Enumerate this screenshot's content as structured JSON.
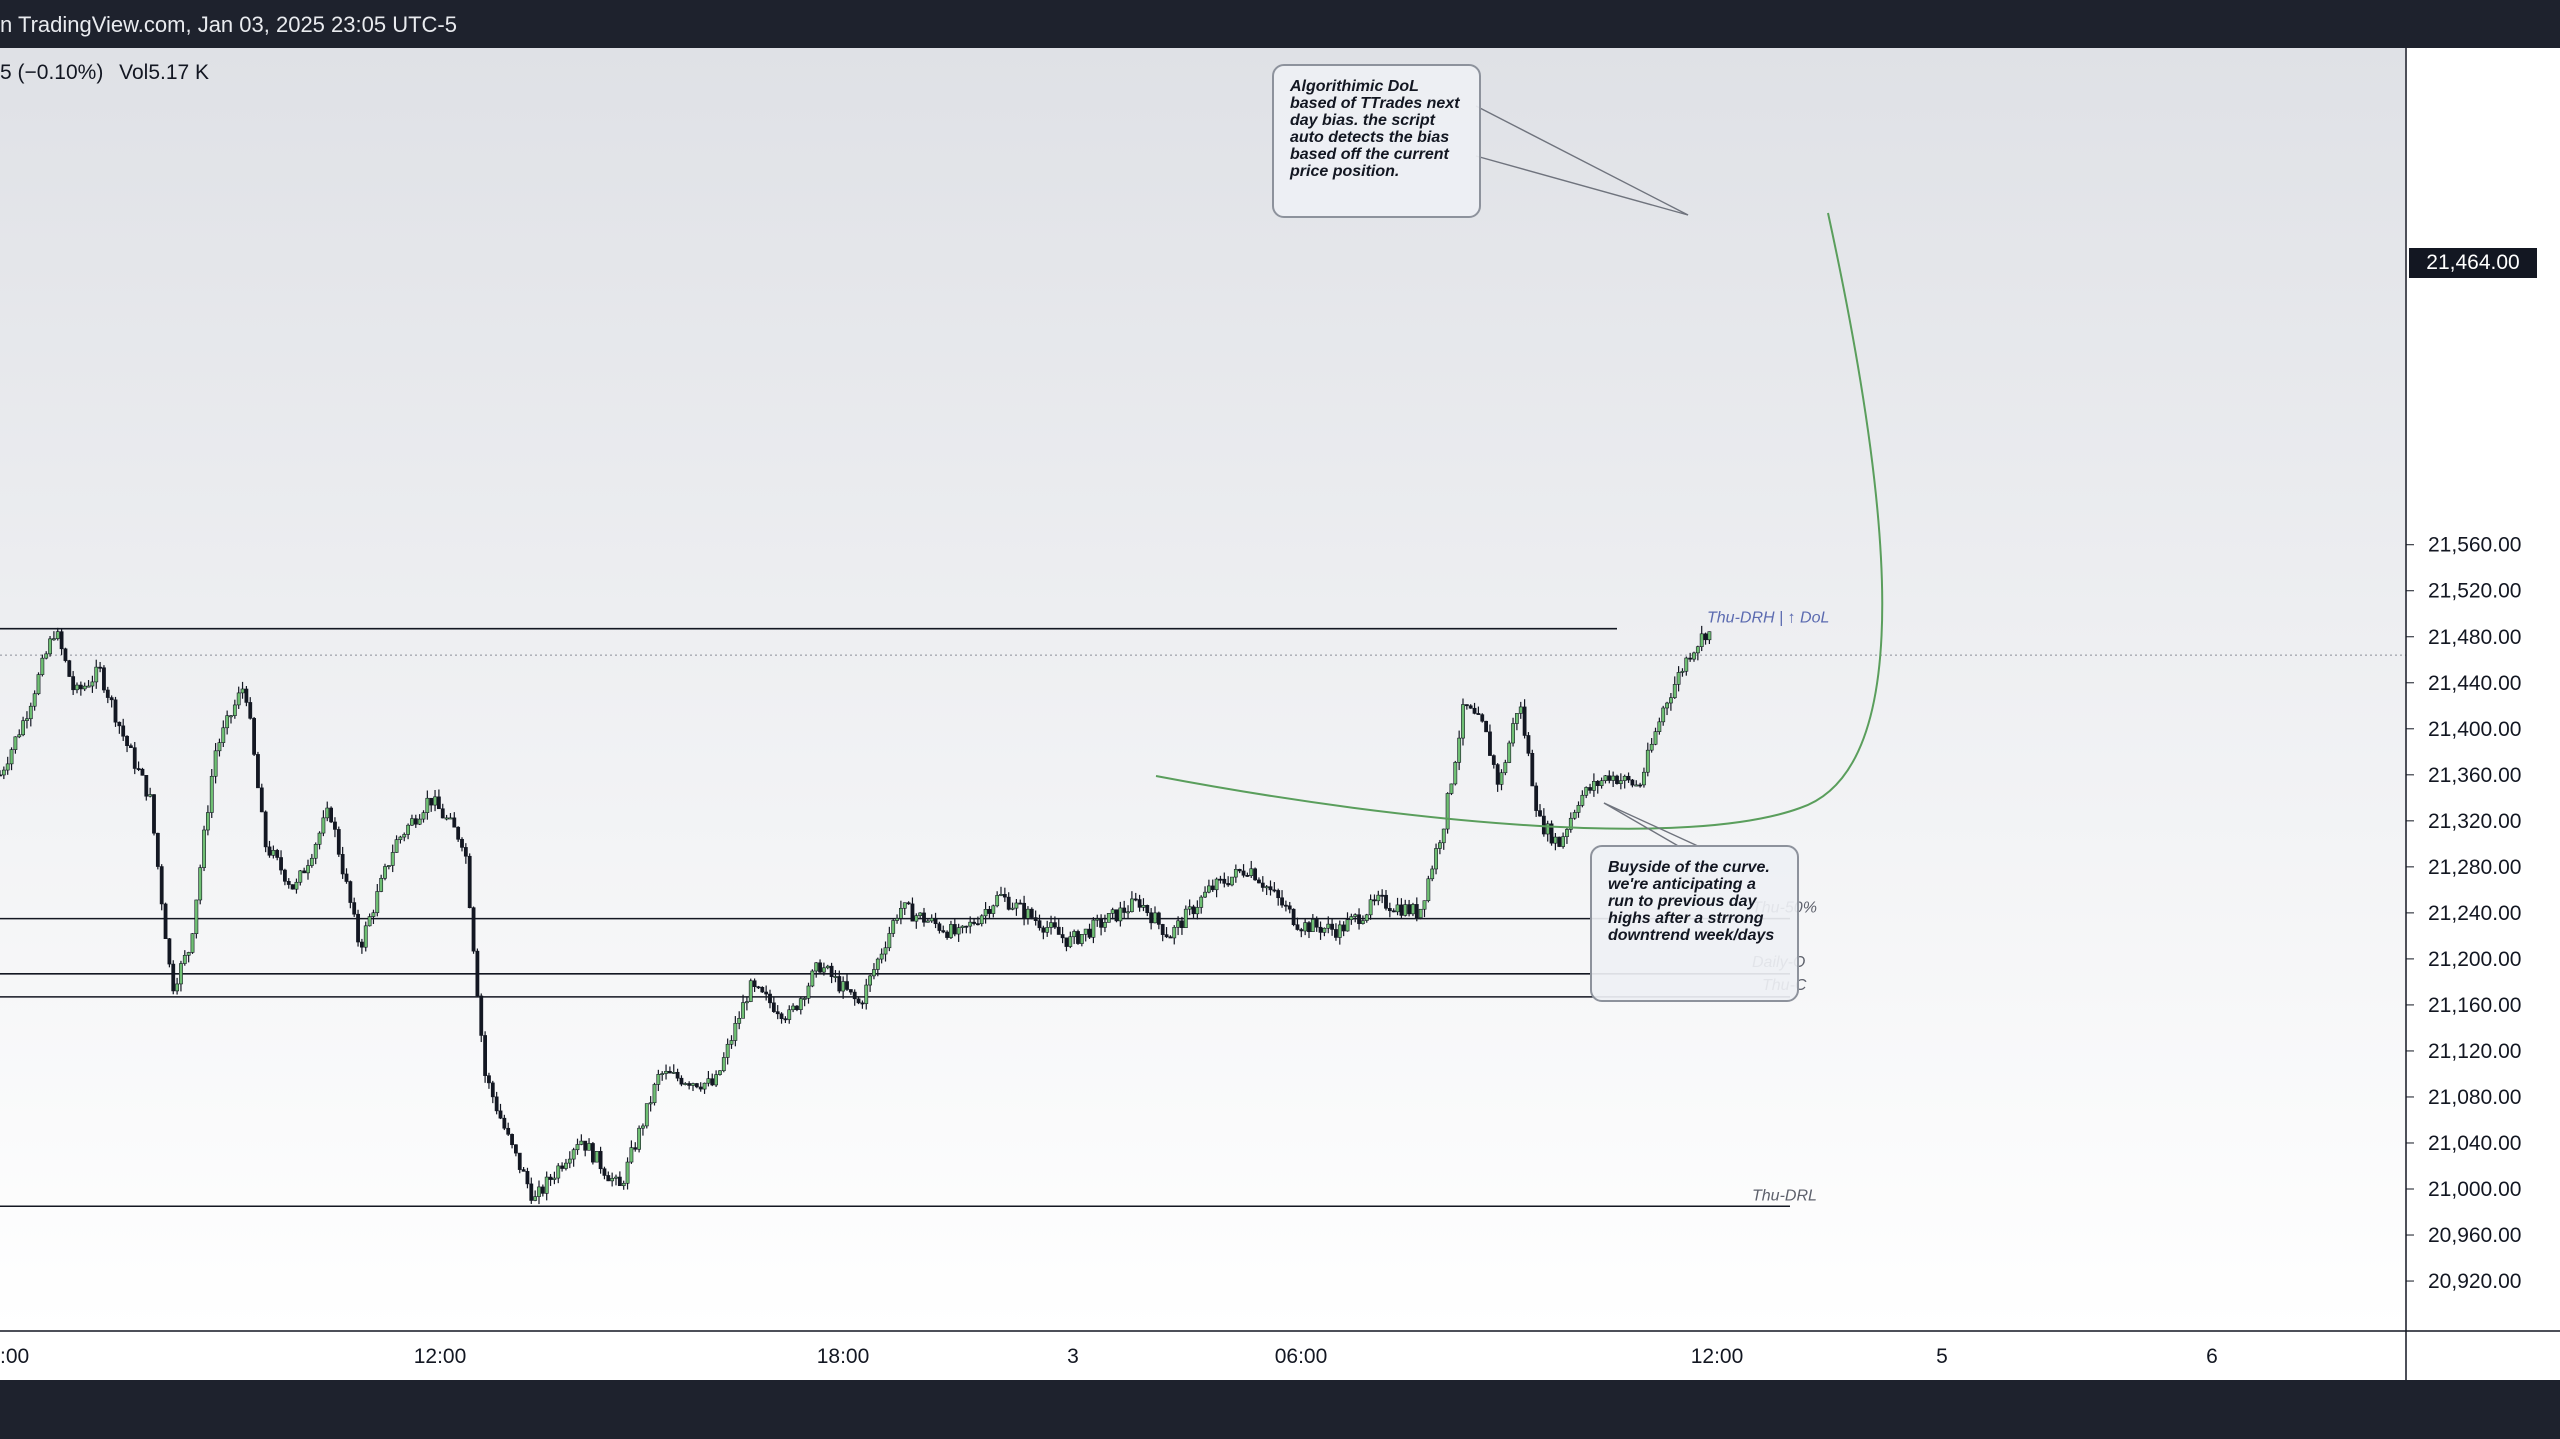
{
  "header": {
    "title": "n TradingView.com, Jan 03, 2025 23:05 UTC-5"
  },
  "legend": {
    "change": "5 (−0.10%)",
    "volume": "Vol5.17 K"
  },
  "current_price": {
    "label": "21,464.00",
    "value": 21464
  },
  "annotations": {
    "dol_note": "Algorithimic DoL based of TTrades next day bias.  the script auto detects the bias based off the current price position.",
    "curve_note": "Buyside of the curve. we're anticipating  a run to previous day highs after a strrong downtrend week/days"
  },
  "colors": {
    "bull": "#6fbf73",
    "bear": "#131722",
    "level_line": "#131722",
    "curve": "#5a9e5c",
    "label_blue": "#5b6ab0",
    "label_gray": "#5d606b"
  },
  "chart_data": {
    "type": "candlestick",
    "y_axis": {
      "ticks": [
        21560,
        21520,
        21480,
        21440,
        21400,
        21360,
        21320,
        21280,
        21240,
        21200,
        21160,
        21120,
        21080,
        21040,
        21000,
        20960,
        20920
      ],
      "tick_labels": [
        "21,560.00",
        "21,520.00",
        "21,480.00",
        "21,440.00",
        "21,400.00",
        "21,360.00",
        "21,320.00",
        "21,280.00",
        "21,240.00",
        "21,200.00",
        "21,160.00",
        "21,120.00",
        "21,080.00",
        "21,040.00",
        "21,000.00",
        "20,960.00",
        "20,920.00"
      ],
      "range": [
        20910,
        21572
      ]
    },
    "x_axis": {
      "tick_labels": [
        ":00",
        "12:00",
        "18:00",
        "3",
        "06:00",
        "12:00",
        "5",
        "6"
      ]
    },
    "levels": [
      {
        "label": "Thu-DRH  |  ↑ DoL",
        "price": 21487
      },
      {
        "label": "Thu-50%",
        "price": 21235
      },
      {
        "label": "Daily-O",
        "price": 21187
      },
      {
        "label": "Thu-C",
        "price": 21167
      },
      {
        "label": "Thu-DRL",
        "price": 20985
      }
    ],
    "price_path": [
      {
        "t": 0,
        "p": 21360
      },
      {
        "t": 25,
        "p": 21410
      },
      {
        "t": 55,
        "p": 21487
      },
      {
        "t": 75,
        "p": 21430
      },
      {
        "t": 100,
        "p": 21450
      },
      {
        "t": 125,
        "p": 21390
      },
      {
        "t": 150,
        "p": 21340
      },
      {
        "t": 172,
        "p": 21175
      },
      {
        "t": 190,
        "p": 21210
      },
      {
        "t": 215,
        "p": 21380
      },
      {
        "t": 245,
        "p": 21440
      },
      {
        "t": 265,
        "p": 21300
      },
      {
        "t": 295,
        "p": 21260
      },
      {
        "t": 330,
        "p": 21330
      },
      {
        "t": 360,
        "p": 21210
      },
      {
        "t": 395,
        "p": 21300
      },
      {
        "t": 430,
        "p": 21340
      },
      {
        "t": 465,
        "p": 21300
      },
      {
        "t": 485,
        "p": 21100
      },
      {
        "t": 510,
        "p": 21040
      },
      {
        "t": 535,
        "p": 20990
      },
      {
        "t": 580,
        "p": 21045
      },
      {
        "t": 620,
        "p": 21000
      },
      {
        "t": 660,
        "p": 21100
      },
      {
        "t": 715,
        "p": 21090
      },
      {
        "t": 750,
        "p": 21175
      },
      {
        "t": 790,
        "p": 21150
      },
      {
        "t": 820,
        "p": 21195
      },
      {
        "t": 860,
        "p": 21160
      },
      {
        "t": 900,
        "p": 21245
      },
      {
        "t": 960,
        "p": 21220
      },
      {
        "t": 1000,
        "p": 21255
      },
      {
        "t": 1070,
        "p": 21215
      },
      {
        "t": 1140,
        "p": 21250
      },
      {
        "t": 1170,
        "p": 21220
      },
      {
        "t": 1210,
        "p": 21260
      },
      {
        "t": 1250,
        "p": 21280
      },
      {
        "t": 1300,
        "p": 21230
      },
      {
        "t": 1340,
        "p": 21225
      },
      {
        "t": 1380,
        "p": 21250
      },
      {
        "t": 1420,
        "p": 21240
      },
      {
        "t": 1445,
        "p": 21320
      },
      {
        "t": 1465,
        "p": 21420
      },
      {
        "t": 1485,
        "p": 21400
      },
      {
        "t": 1500,
        "p": 21350
      },
      {
        "t": 1520,
        "p": 21425
      },
      {
        "t": 1540,
        "p": 21320
      },
      {
        "t": 1560,
        "p": 21300
      },
      {
        "t": 1580,
        "p": 21340
      },
      {
        "t": 1610,
        "p": 21360
      },
      {
        "t": 1640,
        "p": 21350
      },
      {
        "t": 1665,
        "p": 21420
      },
      {
        "t": 1690,
        "p": 21465
      },
      {
        "t": 1710,
        "p": 21488
      },
      {
        "t": 1712,
        "p": 21464
      }
    ]
  }
}
